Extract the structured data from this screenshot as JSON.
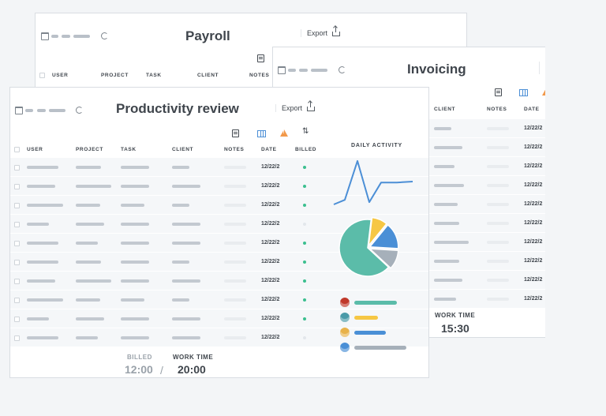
{
  "payroll": {
    "title": "Payroll",
    "export_label": "Export",
    "columns": [
      "USER",
      "PROJECT",
      "TASK",
      "CLIENT",
      "NOTES"
    ]
  },
  "invoicing": {
    "title": "Invoicing",
    "columns": [
      "CLIENT",
      "NOTES",
      "DATE"
    ],
    "rows": [
      {
        "date": "12/22/2"
      },
      {
        "date": "12/22/2"
      },
      {
        "date": "12/22/2"
      },
      {
        "date": "12/22/2"
      },
      {
        "date": "12/22/2"
      },
      {
        "date": "12/22/2"
      },
      {
        "date": "12/22/2"
      },
      {
        "date": "12/22/2"
      },
      {
        "date": "12/22/2"
      },
      {
        "date": "12/22/2"
      }
    ],
    "work_time_label": "WORK TIME",
    "work_time_value": "15:30"
  },
  "productivity": {
    "title": "Productivity review",
    "export_label": "Export",
    "columns": [
      "USER",
      "PROJECT",
      "TASK",
      "CLIENT",
      "NOTES",
      "DATE",
      "BILLED"
    ],
    "rows": [
      {
        "date": "12/22/2",
        "billed": true
      },
      {
        "date": "12/22/2",
        "billed": true
      },
      {
        "date": "12/22/2",
        "billed": true
      },
      {
        "date": "12/22/2",
        "billed": false
      },
      {
        "date": "12/22/2",
        "billed": true
      },
      {
        "date": "12/22/2",
        "billed": true
      },
      {
        "date": "12/22/2",
        "billed": true
      },
      {
        "date": "12/22/2",
        "billed": true
      },
      {
        "date": "12/22/2",
        "billed": true
      },
      {
        "date": "12/22/2",
        "billed": false
      }
    ],
    "billed_label": "BILLED",
    "billed_value": "12:00",
    "separator": "/",
    "work_time_label": "WORK TIME",
    "work_time_value": "20:00"
  },
  "activity": {
    "title": "DAILY ACTIVITY",
    "line_values": [
      0,
      0.1,
      0.95,
      0.05,
      0.48,
      0.48,
      0.5
    ],
    "pie_slices": [
      {
        "value": 9,
        "color": "#f6c744"
      },
      {
        "value": 15,
        "color": "#4a8fd6"
      },
      {
        "value": 11,
        "color": "#a6b0ba"
      },
      {
        "value": 65,
        "color": "#5bbca9"
      }
    ],
    "legend": [
      {
        "color": "#5bbca9",
        "avatar": "#c0392b"
      },
      {
        "color": "#f6c744",
        "avatar": "#4a9aa8"
      },
      {
        "color": "#4a8fd6",
        "avatar": "#e8b24a"
      },
      {
        "color": "#a6b0ba",
        "avatar": "#4a8fd6"
      }
    ]
  },
  "colors": {
    "billed_dot": "#3bbf8f",
    "accent_blue": "#4c8fd6",
    "warning": "#f2994a"
  }
}
